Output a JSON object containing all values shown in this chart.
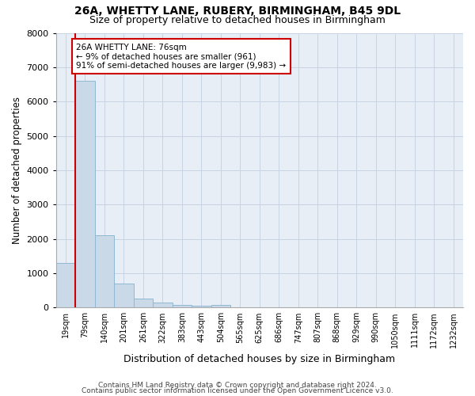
{
  "title1": "26A, WHETTY LANE, RUBERY, BIRMINGHAM, B45 9DL",
  "title2": "Size of property relative to detached houses in Birmingham",
  "xlabel": "Distribution of detached houses by size in Birmingham",
  "ylabel": "Number of detached properties",
  "bar_labels": [
    "19sqm",
    "79sqm",
    "140sqm",
    "201sqm",
    "261sqm",
    "322sqm",
    "383sqm",
    "443sqm",
    "504sqm",
    "565sqm",
    "625sqm",
    "686sqm",
    "747sqm",
    "807sqm",
    "868sqm",
    "929sqm",
    "990sqm",
    "1050sqm",
    "1111sqm",
    "1172sqm",
    "1232sqm"
  ],
  "bar_values": [
    1300,
    6600,
    2100,
    700,
    270,
    140,
    80,
    60,
    70,
    0,
    0,
    0,
    0,
    0,
    0,
    0,
    0,
    0,
    0,
    0,
    0
  ],
  "bar_color": "#c9d9e8",
  "bar_edge_color": "#8fb8d4",
  "grid_color": "#c8d4e4",
  "bg_color": "#e8eef6",
  "vline_color": "#cc0000",
  "annotation_text": "26A WHETTY LANE: 76sqm\n← 9% of detached houses are smaller (961)\n91% of semi-detached houses are larger (9,983) →",
  "annotation_box_color": "#cc0000",
  "annotation_text_size": 7.5,
  "ylim": [
    0,
    8000
  ],
  "yticks": [
    0,
    1000,
    2000,
    3000,
    4000,
    5000,
    6000,
    7000,
    8000
  ],
  "footer1": "Contains HM Land Registry data © Crown copyright and database right 2024.",
  "footer2": "Contains public sector information licensed under the Open Government Licence v3.0."
}
